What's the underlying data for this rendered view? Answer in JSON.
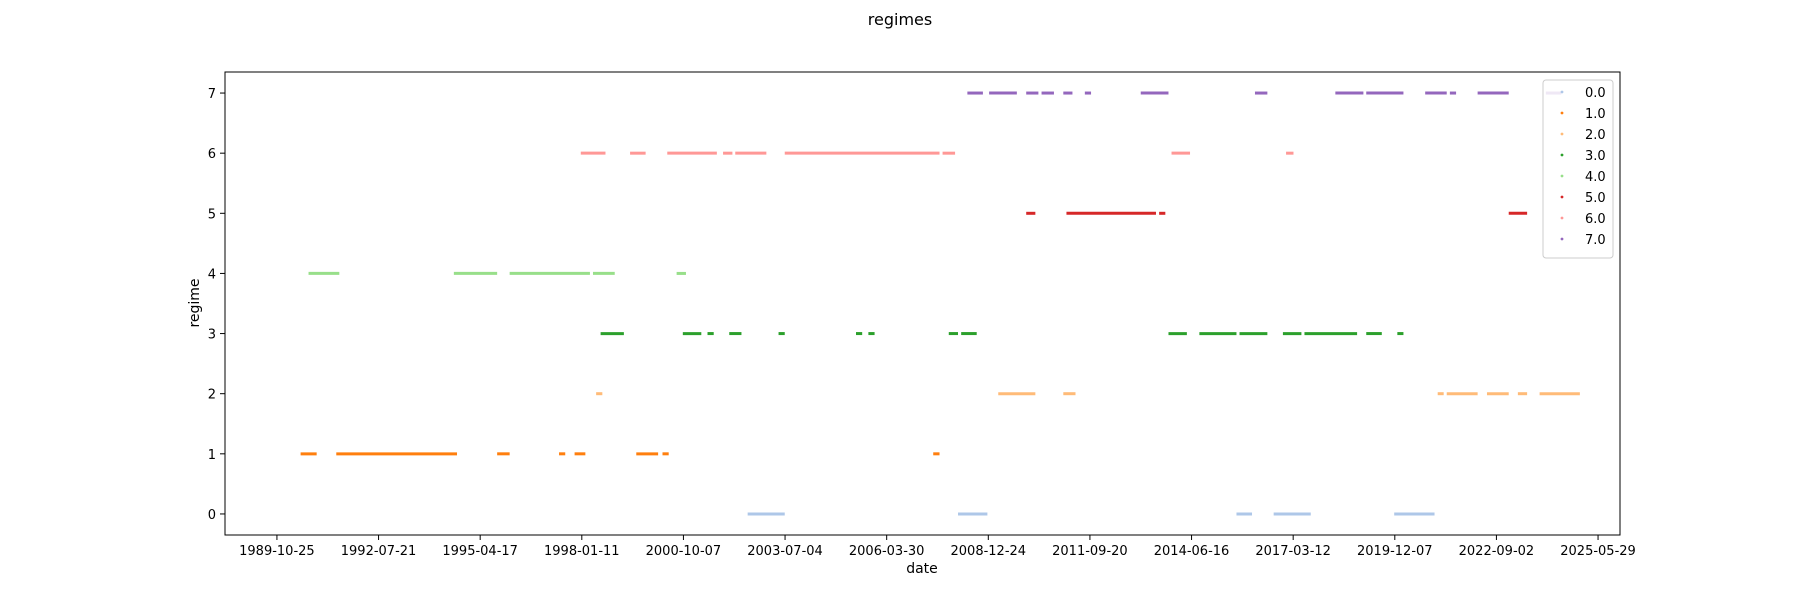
{
  "chart_data": {
    "type": "scatter",
    "title": "regimes",
    "xlabel": "date",
    "ylabel": "regime",
    "x_type": "date",
    "xlim": [
      "1988-06-01",
      "2025-12-31"
    ],
    "ylim": [
      -0.35,
      7.35
    ],
    "x_ticks": [
      "1989-10-25",
      "1992-07-21",
      "1995-04-17",
      "1998-01-11",
      "2000-10-07",
      "2003-07-04",
      "2006-03-30",
      "2008-12-24",
      "2011-09-20",
      "2014-06-16",
      "2017-03-12",
      "2019-12-07",
      "2022-09-02",
      "2025-05-29"
    ],
    "y_ticks": [
      0,
      1,
      2,
      3,
      4,
      5,
      6,
      7
    ],
    "grid": false,
    "legend_position": "top-right",
    "series": [
      {
        "name": "0.0",
        "color": "#aec7e8",
        "segments": [
          [
            "2002-07-01",
            "2003-07-01"
          ],
          [
            "2008-03-01",
            "2008-12-15"
          ],
          [
            "2015-09-01",
            "2016-02-01"
          ],
          [
            "2016-09-01",
            "2017-09-01"
          ],
          [
            "2019-12-01",
            "2021-01-01"
          ]
        ]
      },
      {
        "name": "1.0",
        "color": "#ff7f0e",
        "segments": [
          [
            "1990-06-15",
            "1990-11-20"
          ],
          [
            "1991-06-01",
            "1994-09-01"
          ],
          [
            "1995-10-01",
            "1996-02-01"
          ],
          [
            "1997-06-01",
            "1997-08-01"
          ],
          [
            "1997-11-01",
            "1998-02-15"
          ],
          [
            "1999-07-01",
            "2000-02-01"
          ],
          [
            "2000-03-15",
            "2000-05-15"
          ],
          [
            "2007-07-01",
            "2007-09-01"
          ]
        ]
      },
      {
        "name": "2.0",
        "color": "#ffbb78",
        "segments": [
          [
            "1998-06-01",
            "1998-08-01"
          ],
          [
            "2009-04-01",
            "2010-04-01"
          ],
          [
            "2011-01-01",
            "2011-05-01"
          ],
          [
            "2021-02-01",
            "2021-04-01"
          ],
          [
            "2021-05-01",
            "2022-03-01"
          ],
          [
            "2022-06-01",
            "2023-01-01"
          ],
          [
            "2023-04-01",
            "2023-07-01"
          ],
          [
            "2023-11-01",
            "2024-12-01"
          ]
        ]
      },
      {
        "name": "3.0",
        "color": "#2ca02c",
        "segments": [
          [
            "1998-07-15",
            "1999-03-01"
          ],
          [
            "2000-10-01",
            "2001-04-01"
          ],
          [
            "2001-06-01",
            "2001-08-01"
          ],
          [
            "2002-01-01",
            "2002-05-01"
          ],
          [
            "2003-05-01",
            "2003-07-01"
          ],
          [
            "2005-06-01",
            "2005-08-01"
          ],
          [
            "2005-10-01",
            "2005-12-01"
          ],
          [
            "2007-12-01",
            "2008-03-01"
          ],
          [
            "2008-04-01",
            "2008-09-01"
          ],
          [
            "2013-11-01",
            "2014-05-01"
          ],
          [
            "2014-09-01",
            "2015-09-01"
          ],
          [
            "2015-10-01",
            "2016-07-01"
          ],
          [
            "2016-12-01",
            "2017-06-01"
          ],
          [
            "2017-07-01",
            "2018-12-01"
          ],
          [
            "2019-03-01",
            "2019-08-01"
          ],
          [
            "2020-01-01",
            "2020-03-01"
          ]
        ]
      },
      {
        "name": "4.0",
        "color": "#98df8a",
        "segments": [
          [
            "1990-09-01",
            "1991-07-01"
          ],
          [
            "1994-08-01",
            "1995-10-01"
          ],
          [
            "1996-02-01",
            "1998-04-01"
          ],
          [
            "1998-05-01",
            "1998-12-01"
          ],
          [
            "2000-08-01",
            "2000-11-01"
          ]
        ]
      },
      {
        "name": "5.0",
        "color": "#d62728",
        "segments": [
          [
            "2010-01-01",
            "2010-04-01"
          ],
          [
            "2011-02-01",
            "2013-07-01"
          ],
          [
            "2013-08-01",
            "2013-10-01"
          ],
          [
            "2023-01-01",
            "2023-07-01"
          ]
        ]
      },
      {
        "name": "6.0",
        "color": "#ff9896",
        "segments": [
          [
            "1998-01-01",
            "1998-09-01"
          ],
          [
            "1999-05-01",
            "1999-10-01"
          ],
          [
            "2000-05-01",
            "2001-09-01"
          ],
          [
            "2001-11-01",
            "2002-02-01"
          ],
          [
            "2002-03-01",
            "2003-01-01"
          ],
          [
            "2003-07-01",
            "2007-09-01"
          ],
          [
            "2007-10-01",
            "2008-02-01"
          ],
          [
            "2013-12-01",
            "2014-06-01"
          ],
          [
            "2017-01-01",
            "2017-03-15"
          ]
        ]
      },
      {
        "name": "7.0",
        "color": "#9467bd",
        "segments": [
          [
            "2008-06-01",
            "2008-11-01"
          ],
          [
            "2009-01-01",
            "2009-10-01"
          ],
          [
            "2010-01-01",
            "2010-05-01"
          ],
          [
            "2010-06-01",
            "2010-10-01"
          ],
          [
            "2011-01-01",
            "2011-04-01"
          ],
          [
            "2011-08-01",
            "2011-10-01"
          ],
          [
            "2013-02-01",
            "2013-11-01"
          ],
          [
            "2016-03-01",
            "2016-07-01"
          ],
          [
            "2018-05-01",
            "2019-02-01"
          ],
          [
            "2019-03-01",
            "2020-03-01"
          ],
          [
            "2020-10-01",
            "2021-05-01"
          ],
          [
            "2021-06-01",
            "2021-08-01"
          ],
          [
            "2022-03-01",
            "2023-01-01"
          ],
          [
            "2024-01-01",
            "2024-06-01"
          ]
        ]
      }
    ]
  }
}
